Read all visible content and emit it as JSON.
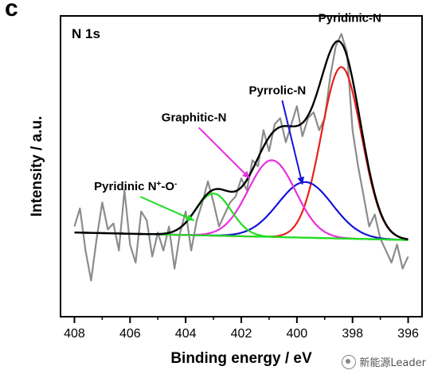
{
  "panel_letter": "c",
  "watermark": "新能源Leader",
  "chart_data": {
    "type": "line",
    "title": "N 1s",
    "xlabel": "Binding energy / eV",
    "ylabel": "Intensity / a.u.",
    "xlim": [
      408.5,
      395.5
    ],
    "x_reversed": true,
    "ylim": [
      0,
      100
    ],
    "xticks": [
      408,
      406,
      404,
      402,
      400,
      398,
      396
    ],
    "grid": false,
    "colors": {
      "raw": "#8c8c8c",
      "envelope": "#000000",
      "pyridinic": "#e8201a",
      "pyrrolic": "#1414d6",
      "graphitic": "#e830e0",
      "oxide": "#22dd22",
      "baseline": "#22dd22"
    },
    "baseline": {
      "x": [
        408,
        396
      ],
      "y": [
        28,
        25.5
      ]
    },
    "peaks": [
      {
        "name": "Pyridinic-N",
        "center": 398.4,
        "height": 57,
        "fwhm": 1.7,
        "color_key": "pyridinic"
      },
      {
        "name": "Pyrrolic-N",
        "center": 399.7,
        "height": 18.5,
        "fwhm": 2.3,
        "color_key": "pyrrolic"
      },
      {
        "name": "Graphitic-N",
        "center": 400.9,
        "height": 25.5,
        "fwhm": 2.0,
        "color_key": "graphitic"
      },
      {
        "name": "Pyridinic N+-O-",
        "center": 403.0,
        "height": 14,
        "fwhm": 1.5,
        "color_key": "oxide"
      }
    ],
    "raw_data": {
      "x": [
        408.0,
        407.8,
        407.6,
        407.4,
        407.2,
        407.0,
        406.8,
        406.6,
        406.4,
        406.2,
        406.0,
        405.8,
        405.6,
        405.4,
        405.2,
        405.0,
        404.8,
        404.6,
        404.4,
        404.2,
        404.0,
        403.8,
        403.6,
        403.4,
        403.2,
        403.0,
        402.8,
        402.6,
        402.4,
        402.2,
        402.0,
        401.8,
        401.6,
        401.4,
        401.2,
        401.0,
        400.8,
        400.6,
        400.4,
        400.2,
        400.0,
        399.8,
        399.6,
        399.4,
        399.2,
        399.0,
        398.8,
        398.6,
        398.4,
        398.2,
        398.0,
        397.8,
        397.6,
        397.4,
        397.2,
        397.0,
        396.8,
        396.6,
        396.4,
        396.2,
        396.0
      ],
      "y": [
        30,
        36,
        22,
        12,
        26,
        38,
        29,
        31,
        22,
        42,
        24,
        18,
        35,
        32,
        20,
        28,
        22,
        30,
        16,
        28,
        35,
        22,
        32,
        38,
        45,
        38,
        30,
        34,
        38,
        40,
        46,
        42,
        52,
        50,
        62,
        55,
        64,
        66,
        58,
        64,
        70,
        60,
        66,
        68,
        62,
        66,
        80,
        90,
        94,
        88,
        62,
        50,
        40,
        30,
        34,
        26,
        22,
        18,
        24,
        16,
        20
      ]
    },
    "annotations": [
      {
        "text": "Pyridinic-N",
        "x": 398.1,
        "y": 98,
        "arrow": false
      },
      {
        "text": "Pyrrolic-N",
        "x": 400.7,
        "y": 74,
        "arrow": true,
        "arrow_to": [
          399.8,
          44
        ],
        "color_key": "pyrrolic"
      },
      {
        "text": "Graphitic-N",
        "x": 403.7,
        "y": 65,
        "arrow": true,
        "arrow_to": [
          401.7,
          46
        ],
        "color_key": "graphitic"
      },
      {
        "text": "Pyridinic N+-O-",
        "x": 405.8,
        "y": 42,
        "arrow": true,
        "arrow_to": [
          403.7,
          32
        ],
        "color_key": "oxide"
      }
    ]
  }
}
